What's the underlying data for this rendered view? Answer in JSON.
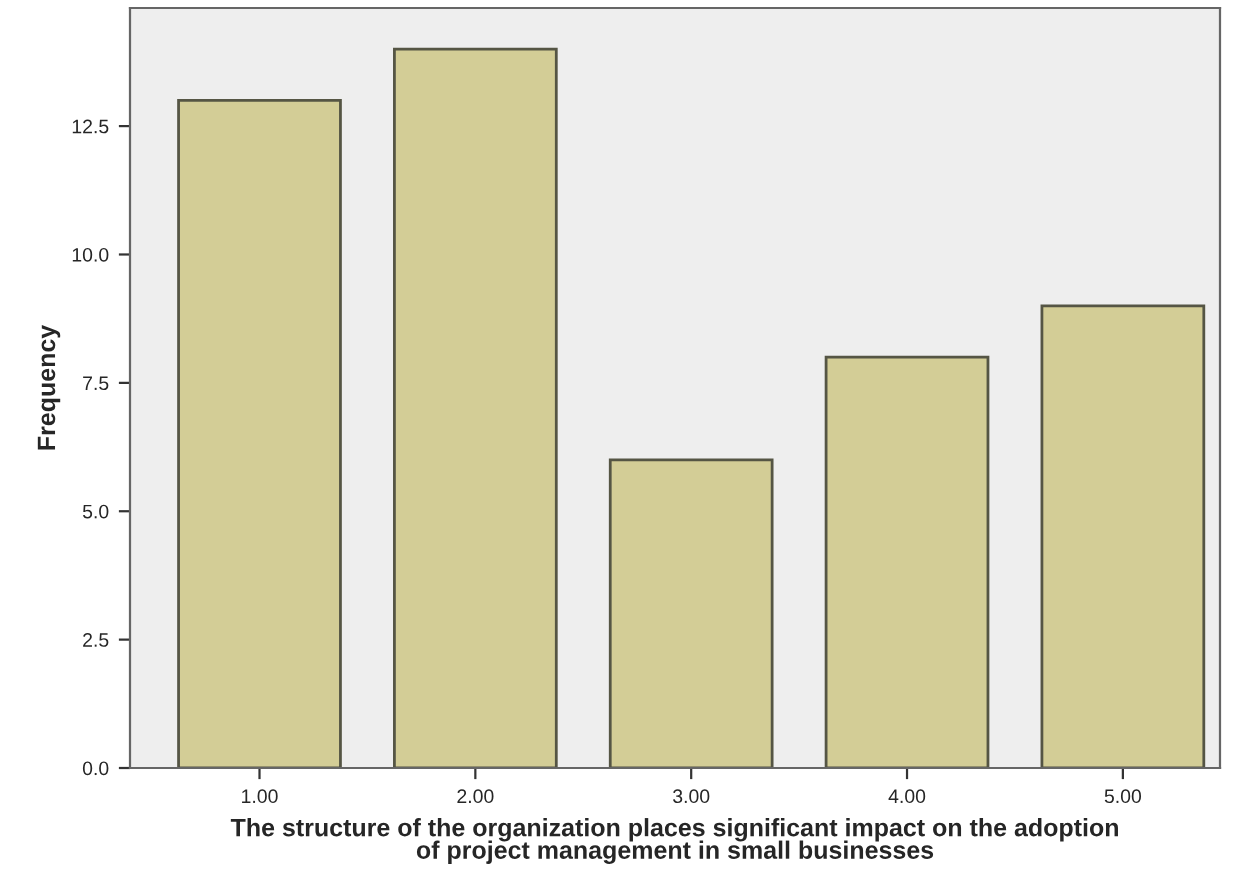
{
  "chart_data": {
    "type": "bar",
    "xlabel": "The structure of the organization places significant impact on the adoption\nof project management in small businesses",
    "ylabel": "Frequency",
    "categories": [
      "1.00",
      "2.00",
      "3.00",
      "4.00",
      "5.00"
    ],
    "values": [
      13,
      14,
      6,
      8,
      9
    ],
    "color": "#d3cd96",
    "ylim": [
      0,
      14.8
    ],
    "yticks": [
      {
        "value": 0,
        "label": "0.0"
      },
      {
        "value": 2.5,
        "label": "2.5"
      },
      {
        "value": 5,
        "label": "5.0"
      },
      {
        "value": 7.5,
        "label": "7.5"
      },
      {
        "value": 10,
        "label": "10.0"
      },
      {
        "value": 12.5,
        "label": "12.5"
      }
    ],
    "grid": false
  }
}
